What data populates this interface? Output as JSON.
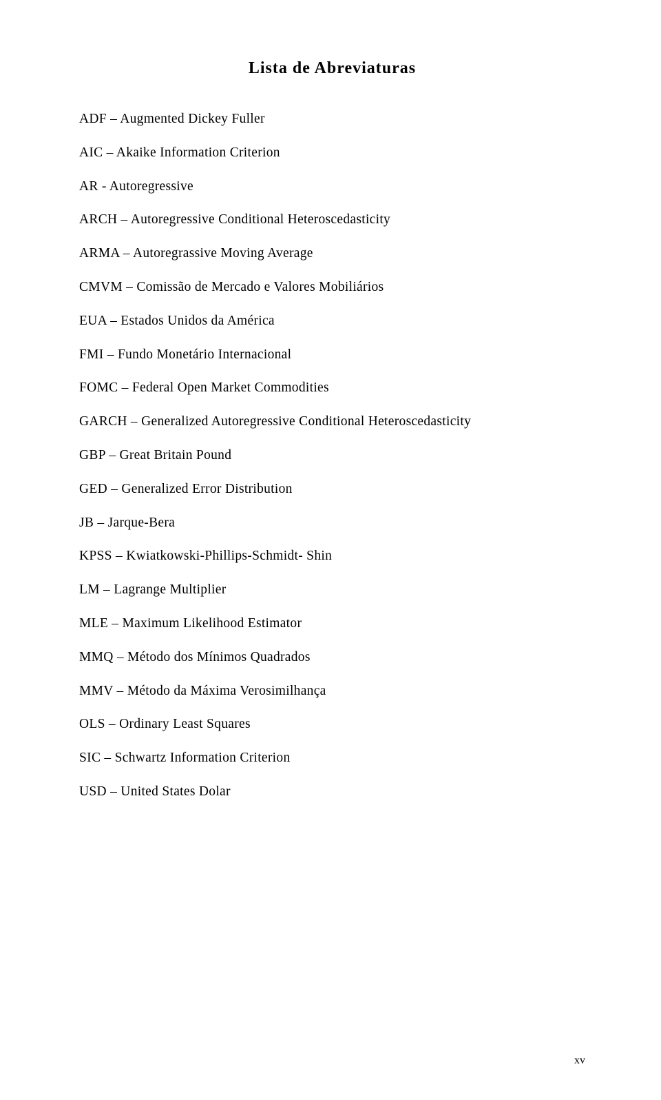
{
  "title": "Lista de Abreviaturas",
  "entries": [
    "ADF – Augmented Dickey Fuller",
    "AIC – Akaike Information Criterion",
    "AR - Autoregressive",
    "ARCH – Autoregressive Conditional Heteroscedasticity",
    "ARMA – Autoregrassive Moving Average",
    "CMVM – Comissão de Mercado e Valores Mobiliários",
    "EUA – Estados Unidos da América",
    "FMI – Fundo Monetário Internacional",
    "FOMC – Federal Open Market Commodities",
    "GARCH – Generalized Autoregressive Conditional Heteroscedasticity",
    "GBP – Great Britain Pound",
    "GED – Generalized Error Distribution",
    "JB – Jarque-Bera",
    "KPSS – Kwiatkowski-Phillips-Schmidt- Shin",
    "LM – Lagrange Multiplier",
    "MLE – Maximum Likelihood Estimator",
    "MMQ – Método dos Mínimos Quadrados",
    "MMV – Método da Máxima Verosimilhança",
    "OLS – Ordinary Least Squares",
    "SIC – Schwartz Information Criterion",
    "USD – United States Dolar"
  ],
  "page_number": "xv"
}
